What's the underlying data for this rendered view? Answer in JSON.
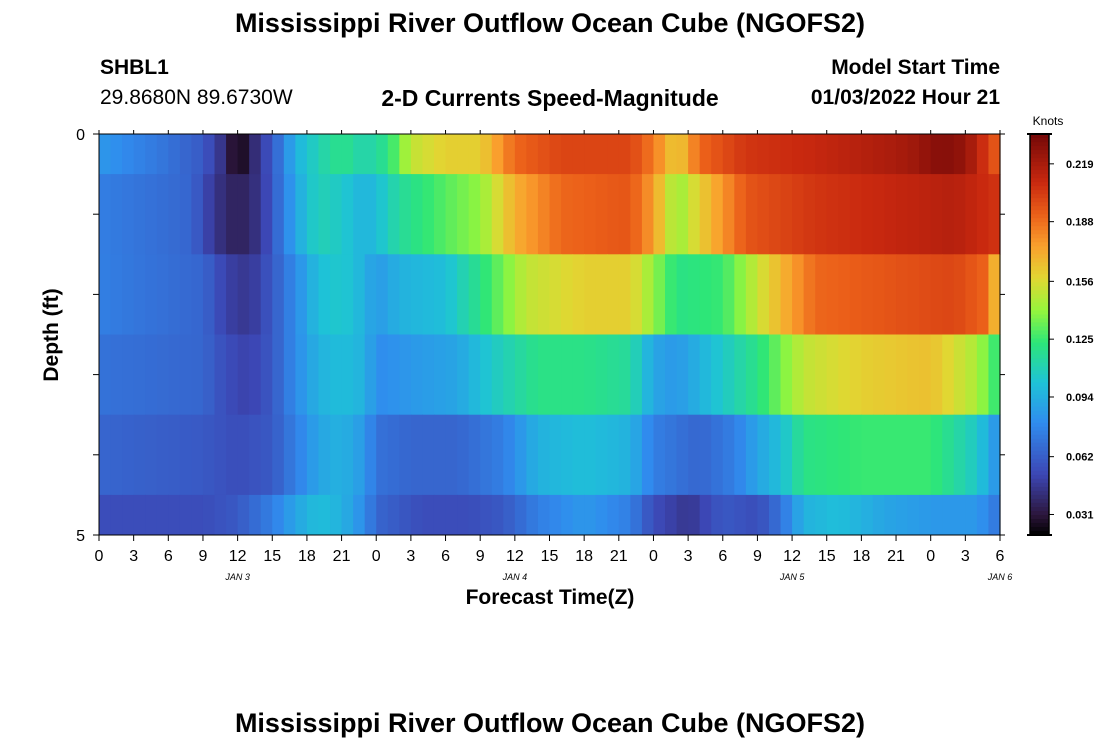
{
  "title": "Mississippi River Outflow Ocean Cube (NGOFS2)",
  "title_repeat": "Mississippi River Outflow Ocean Cube (NGOFS2)",
  "station": {
    "id": "SHBL1",
    "coords": "29.8680N  89.6730W"
  },
  "subtitle": "2-D Currents Speed-Magnitude",
  "model_start": {
    "label": "Model Start Time",
    "value": "01/03/2022 Hour 21"
  },
  "chart_data": {
    "type": "heatmap",
    "title": "2-D Currents Speed-Magnitude",
    "xlabel": "Forecast Time(Z)",
    "ylabel": "Depth (ft)",
    "ylim": [
      0,
      5
    ],
    "y_ticks": [
      "0",
      "5"
    ],
    "x_tick_labels": [
      "0",
      "3",
      "6",
      "9",
      "12",
      "15",
      "18",
      "21",
      "0",
      "3",
      "6",
      "9",
      "12",
      "15",
      "18",
      "21",
      "0",
      "3",
      "6",
      "9",
      "12",
      "15",
      "18",
      "21",
      "0",
      "3",
      "6"
    ],
    "day_labels": [
      {
        "label": "JAN 3",
        "hour": 12
      },
      {
        "label": "JAN 4",
        "hour": 36
      },
      {
        "label": "JAN 5",
        "hour": 60
      },
      {
        "label": "JAN 6",
        "hour": 78
      }
    ],
    "x_hours": [
      0,
      78
    ],
    "colorbar": {
      "unit": "Knots",
      "ticks": [
        "0.219",
        "0.188",
        "0.156",
        "0.125",
        "0.094",
        "0.062",
        "0.031"
      ],
      "min": 0.02,
      "max": 0.235,
      "tick_values": [
        0.219,
        0.188,
        0.156,
        0.125,
        0.094,
        0.062,
        0.031
      ]
    },
    "layers": [
      {
        "depth_range": [
          0,
          0.5
        ],
        "keypoints": [
          [
            0,
            0.085
          ],
          [
            6,
            0.07
          ],
          [
            9,
            0.06
          ],
          [
            11,
            0.04
          ],
          [
            12,
            0.02
          ],
          [
            13,
            0.035
          ],
          [
            15,
            0.06
          ],
          [
            17,
            0.095
          ],
          [
            19,
            0.11
          ],
          [
            21,
            0.12
          ],
          [
            23,
            0.11
          ],
          [
            25,
            0.12
          ],
          [
            27,
            0.15
          ],
          [
            30,
            0.16
          ],
          [
            33,
            0.16
          ],
          [
            36,
            0.19
          ],
          [
            40,
            0.2
          ],
          [
            46,
            0.2
          ],
          [
            48,
            0.185
          ],
          [
            50,
            0.16
          ],
          [
            52,
            0.19
          ],
          [
            56,
            0.205
          ],
          [
            62,
            0.21
          ],
          [
            66,
            0.215
          ],
          [
            70,
            0.22
          ],
          [
            73,
            0.23
          ],
          [
            75,
            0.225
          ],
          [
            78,
            0.19
          ]
        ]
      },
      {
        "depth_range": [
          0.5,
          1.5
        ],
        "keypoints": [
          [
            0,
            0.075
          ],
          [
            8,
            0.065
          ],
          [
            10,
            0.045
          ],
          [
            12,
            0.035
          ],
          [
            14,
            0.045
          ],
          [
            15,
            0.06
          ],
          [
            17,
            0.09
          ],
          [
            19,
            0.11
          ],
          [
            21,
            0.105
          ],
          [
            23,
            0.095
          ],
          [
            24,
            0.1
          ],
          [
            26,
            0.115
          ],
          [
            30,
            0.13
          ],
          [
            33,
            0.14
          ],
          [
            36,
            0.17
          ],
          [
            40,
            0.19
          ],
          [
            46,
            0.195
          ],
          [
            48,
            0.175
          ],
          [
            50,
            0.14
          ],
          [
            52,
            0.16
          ],
          [
            56,
            0.195
          ],
          [
            62,
            0.205
          ],
          [
            68,
            0.21
          ],
          [
            74,
            0.215
          ],
          [
            78,
            0.205
          ]
        ]
      },
      {
        "depth_range": [
          1.5,
          2.5
        ],
        "keypoints": [
          [
            0,
            0.075
          ],
          [
            9,
            0.065
          ],
          [
            11,
            0.05
          ],
          [
            13,
            0.045
          ],
          [
            15,
            0.06
          ],
          [
            17,
            0.08
          ],
          [
            19,
            0.1
          ],
          [
            21,
            0.105
          ],
          [
            23,
            0.095
          ],
          [
            24,
            0.085
          ],
          [
            26,
            0.095
          ],
          [
            30,
            0.1
          ],
          [
            33,
            0.12
          ],
          [
            37,
            0.15
          ],
          [
            42,
            0.16
          ],
          [
            46,
            0.16
          ],
          [
            48,
            0.14
          ],
          [
            50,
            0.12
          ],
          [
            54,
            0.125
          ],
          [
            58,
            0.16
          ],
          [
            62,
            0.19
          ],
          [
            68,
            0.195
          ],
          [
            74,
            0.2
          ],
          [
            77,
            0.19
          ],
          [
            78,
            0.15
          ]
        ]
      },
      {
        "depth_range": [
          2.5,
          3.5
        ],
        "keypoints": [
          [
            0,
            0.07
          ],
          [
            9,
            0.065
          ],
          [
            11,
            0.055
          ],
          [
            13,
            0.05
          ],
          [
            15,
            0.06
          ],
          [
            17,
            0.08
          ],
          [
            19,
            0.095
          ],
          [
            21,
            0.1
          ],
          [
            23,
            0.095
          ],
          [
            24,
            0.08
          ],
          [
            27,
            0.085
          ],
          [
            31,
            0.09
          ],
          [
            34,
            0.105
          ],
          [
            38,
            0.12
          ],
          [
            42,
            0.12
          ],
          [
            46,
            0.115
          ],
          [
            48,
            0.09
          ],
          [
            50,
            0.085
          ],
          [
            53,
            0.1
          ],
          [
            57,
            0.12
          ],
          [
            61,
            0.15
          ],
          [
            66,
            0.16
          ],
          [
            72,
            0.165
          ],
          [
            76,
            0.145
          ],
          [
            78,
            0.12
          ]
        ]
      },
      {
        "depth_range": [
          3.5,
          4.5
        ],
        "keypoints": [
          [
            0,
            0.065
          ],
          [
            9,
            0.06
          ],
          [
            12,
            0.055
          ],
          [
            15,
            0.06
          ],
          [
            17,
            0.075
          ],
          [
            19,
            0.09
          ],
          [
            21,
            0.095
          ],
          [
            23,
            0.085
          ],
          [
            24,
            0.07
          ],
          [
            27,
            0.065
          ],
          [
            31,
            0.065
          ],
          [
            35,
            0.075
          ],
          [
            38,
            0.095
          ],
          [
            42,
            0.1
          ],
          [
            46,
            0.095
          ],
          [
            48,
            0.075
          ],
          [
            52,
            0.065
          ],
          [
            55,
            0.075
          ],
          [
            57,
            0.09
          ],
          [
            59,
            0.1
          ],
          [
            61,
            0.12
          ],
          [
            66,
            0.125
          ],
          [
            72,
            0.125
          ],
          [
            76,
            0.105
          ],
          [
            78,
            0.08
          ]
        ]
      },
      {
        "depth_range": [
          4.5,
          5
        ],
        "keypoints": [
          [
            0,
            0.055
          ],
          [
            9,
            0.055
          ],
          [
            12,
            0.06
          ],
          [
            15,
            0.075
          ],
          [
            17,
            0.09
          ],
          [
            19,
            0.1
          ],
          [
            21,
            0.095
          ],
          [
            23,
            0.08
          ],
          [
            24,
            0.065
          ],
          [
            28,
            0.055
          ],
          [
            32,
            0.055
          ],
          [
            35,
            0.06
          ],
          [
            38,
            0.075
          ],
          [
            42,
            0.085
          ],
          [
            46,
            0.075
          ],
          [
            48,
            0.055
          ],
          [
            51,
            0.045
          ],
          [
            54,
            0.06
          ],
          [
            57,
            0.055
          ],
          [
            59,
            0.07
          ],
          [
            61,
            0.095
          ],
          [
            64,
            0.1
          ],
          [
            68,
            0.09
          ],
          [
            72,
            0.085
          ],
          [
            76,
            0.085
          ],
          [
            78,
            0.07
          ]
        ]
      }
    ]
  }
}
